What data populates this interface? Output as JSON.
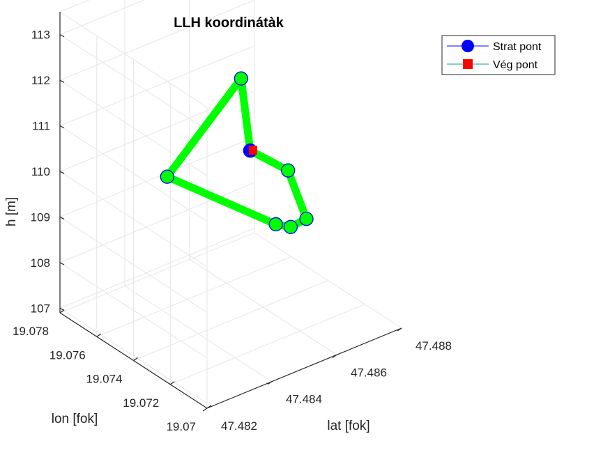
{
  "chart_data": {
    "type": "line3d",
    "title": "LLH koordinátàk",
    "xlabel": "lat [fok]",
    "ylabel": "lon [fok]",
    "zlabel": "h [m]",
    "x_ticks": [
      "47.482",
      "47.484",
      "47.486",
      "47.488"
    ],
    "y_ticks": [
      "19.07",
      "19.072",
      "19.074",
      "19.076",
      "19.078"
    ],
    "z_ticks": [
      "107",
      "108",
      "109",
      "110",
      "111",
      "112",
      "113"
    ],
    "xlim": [
      47.482,
      47.488
    ],
    "ylim": [
      19.07,
      19.078
    ],
    "zlim": [
      106.9,
      113.5
    ],
    "grid": true,
    "path": [
      {
        "lat": 47.4856,
        "lon": 19.074,
        "h": 110.45
      },
      {
        "lat": 47.4862,
        "lon": 19.073,
        "h": 110.1
      },
      {
        "lat": 47.4862,
        "lon": 19.072,
        "h": 109.3
      },
      {
        "lat": 47.4856,
        "lon": 19.0718,
        "h": 109.35
      },
      {
        "lat": 47.4852,
        "lon": 19.0719,
        "h": 109.5
      },
      {
        "lat": 47.4844,
        "lon": 19.0764,
        "h": 109.6
      },
      {
        "lat": 47.486,
        "lon": 19.0752,
        "h": 111.6
      },
      {
        "lat": 47.4856,
        "lon": 19.074,
        "h": 110.45
      }
    ],
    "series": [
      {
        "name": "Strat pont",
        "marker": "circle",
        "color": "#0000ff"
      },
      {
        "name": "Vég pont",
        "marker": "square",
        "color": "#ff0000"
      }
    ],
    "path_color": "#00ff00",
    "legend_position": "top-right"
  }
}
